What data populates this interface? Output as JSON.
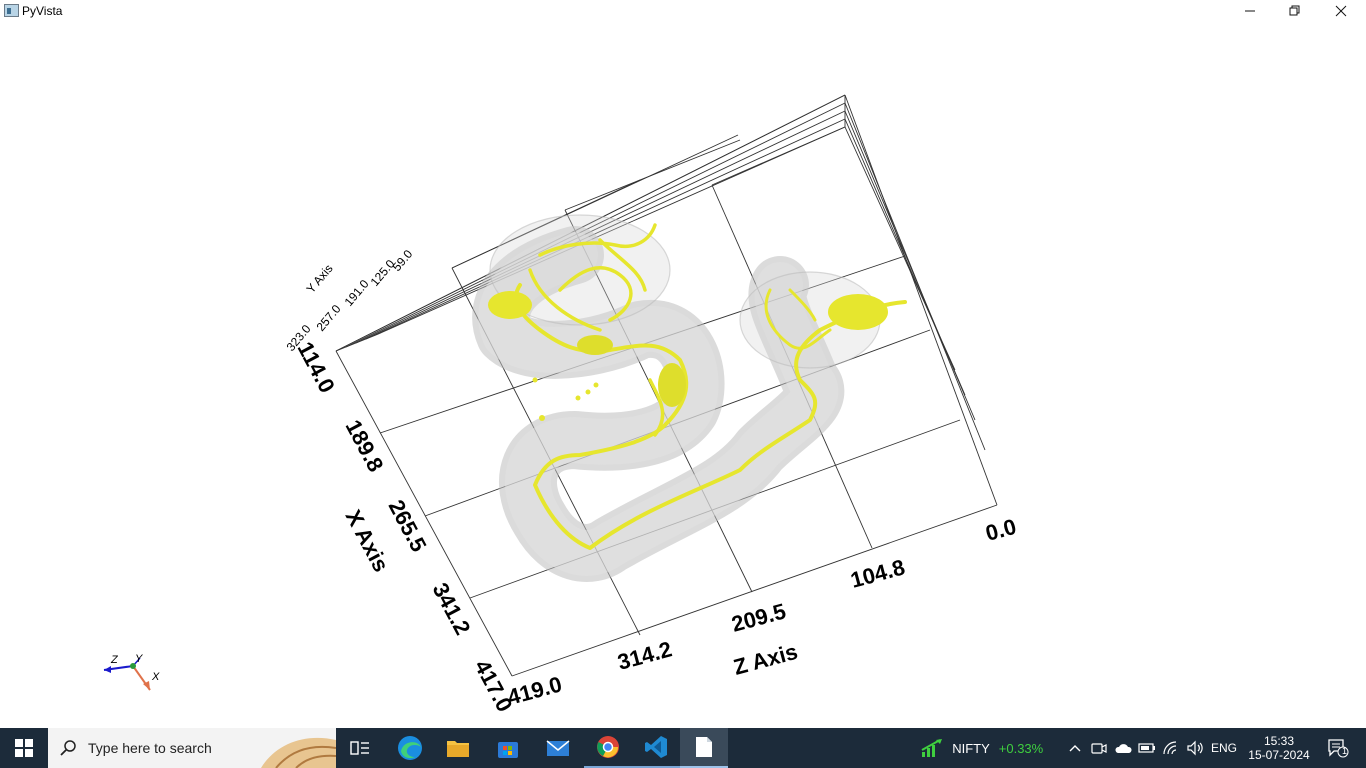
{
  "window": {
    "title": "PyVista",
    "minimize_icon": "minimize-icon",
    "maximize_icon": "restore-icon",
    "close_icon": "close-icon"
  },
  "scene": {
    "x_axis": {
      "title": "X Axis",
      "ticks": [
        "114.0",
        "189.8",
        "265.5",
        "341.2",
        "417.0"
      ]
    },
    "z_axis": {
      "title": "Z Axis",
      "ticks": [
        "419.0",
        "314.2",
        "209.5",
        "104.8",
        "0.0"
      ]
    },
    "y_axis": {
      "title": "Y Axis",
      "ticks": [
        "323.0",
        "257.0",
        "191.0",
        "125.0",
        "59.0"
      ]
    },
    "orientation_widget": {
      "labels": [
        "Z",
        "Y",
        "X"
      ]
    },
    "colors": {
      "mesh": "#e6e62e",
      "shell": "#c8c8c8",
      "grid": "#333333"
    }
  },
  "taskbar": {
    "search_placeholder": "Type here to search",
    "stock_name": "NIFTY",
    "stock_change": "+0.33%",
    "language": "ENG",
    "time": "15:33",
    "date": "15-07-2024",
    "notification_count": "1",
    "colors": {
      "background": "#1c2b3a",
      "stock_positive": "#3fcf3f"
    }
  }
}
